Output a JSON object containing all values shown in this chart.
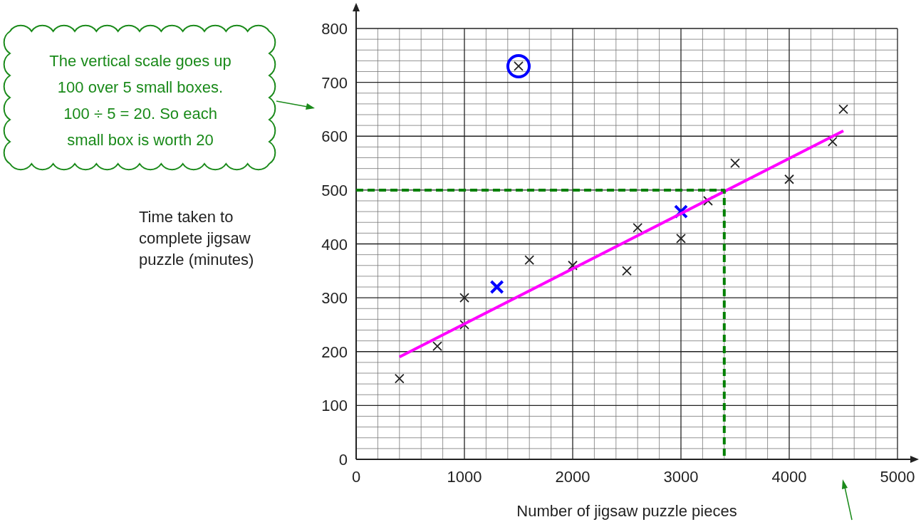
{
  "chart_data": {
    "type": "scatter",
    "xlabel": "Number of jigsaw puzzle pieces",
    "ylabel": "Time taken to complete jigsaw puzzle (minutes)",
    "annotations": [
      "The vertical scale goes up 100 over 5 small boxes. 100 ÷ 5 = 20. So each small box is worth 20"
    ],
    "xlim": [
      0,
      5000
    ],
    "xticks": [
      0,
      1000,
      2000,
      3000,
      4000,
      5000
    ],
    "ylim": [
      0,
      800
    ],
    "yticks": [
      0,
      100,
      200,
      300,
      400,
      500,
      600,
      700,
      800
    ],
    "grid": true,
    "marker": "cross",
    "series": [
      {
        "color": "#222222",
        "x": [
          400,
          750,
          1000,
          1000,
          1500,
          1600,
          2000,
          2500,
          2600,
          3000,
          3250,
          3500,
          4000,
          4400,
          4500
        ],
        "values": [
          150,
          210,
          250,
          300,
          730,
          370,
          360,
          350,
          430,
          410,
          480,
          550,
          520,
          590,
          650
        ]
      },
      {
        "color": "#0000ff",
        "x": [
          1300,
          3000
        ],
        "values": [
          320,
          460
        ]
      },
      {
        "type": "line",
        "color": "#ff00ff",
        "marker": "none",
        "line_style": "solid",
        "x": [
          400,
          4500
        ],
        "values": [
          190,
          610
        ]
      },
      {
        "type": "line",
        "color": "#008000",
        "marker": "none",
        "line_style": "dashed",
        "x": [
          0,
          3400,
          3400
        ],
        "values": [
          500,
          500,
          0
        ]
      }
    ]
  }
}
